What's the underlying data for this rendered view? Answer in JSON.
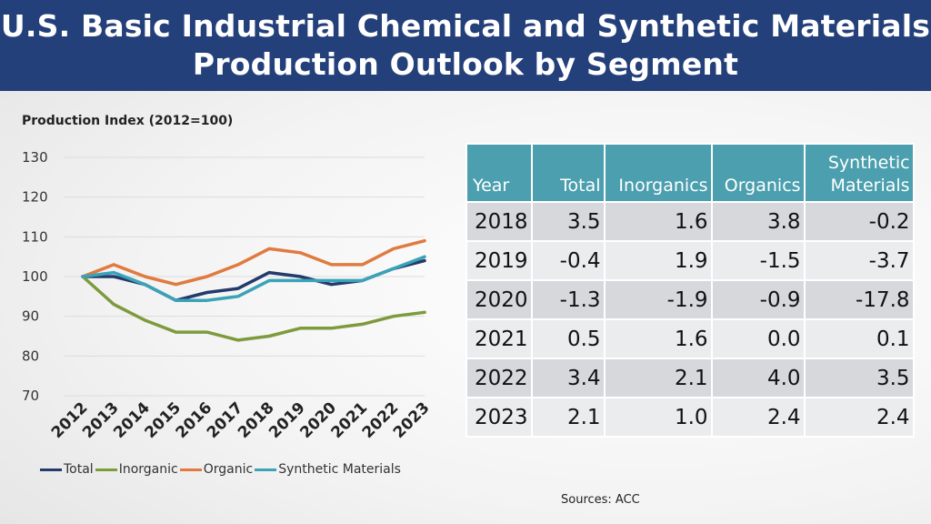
{
  "title_line1": "U.S. Basic Industrial Chemical and Synthetic Materials",
  "title_line2": "Production Outlook by Segment",
  "y_axis_title": "Production Index (2012=100)",
  "source": "Sources: ACC",
  "chart_data": {
    "type": "line",
    "title": "",
    "ylabel": "Production Index (2012=100)",
    "x": [
      "2012",
      "2013",
      "2014",
      "2015",
      "2016",
      "2017",
      "2018",
      "2019",
      "2020",
      "2021",
      "2022",
      "2023"
    ],
    "ylim": [
      70,
      130
    ],
    "yticks": [
      70,
      80,
      90,
      100,
      110,
      120,
      130
    ],
    "grid": true,
    "legend": "bottom",
    "series": [
      {
        "name": "Total",
        "color": "#233a6b",
        "values": [
          100,
          100,
          98,
          94,
          96,
          97,
          101,
          100,
          98,
          99,
          102,
          104
        ]
      },
      {
        "name": "Inorganic",
        "color": "#7d9a3d",
        "values": [
          100,
          93,
          89,
          86,
          86,
          84,
          85,
          87,
          87,
          88,
          90,
          91
        ]
      },
      {
        "name": "Organic",
        "color": "#e07a3f",
        "values": [
          100,
          103,
          100,
          98,
          100,
          103,
          107,
          106,
          103,
          103,
          107,
          109
        ]
      },
      {
        "name": "Synthetic Materials",
        "color": "#3aa3b8",
        "values": [
          100,
          101,
          98,
          94,
          94,
          95,
          99,
          99,
          99,
          99,
          102,
          105
        ]
      }
    ]
  },
  "table": {
    "headers": [
      {
        "line1": "",
        "line2": "Year"
      },
      {
        "line1": "",
        "line2": "Total"
      },
      {
        "line1": "",
        "line2": "Inorganics"
      },
      {
        "line1": "",
        "line2": "Organics"
      },
      {
        "line1": "Synthetic",
        "line2": "Materials"
      }
    ],
    "rows": [
      [
        "2018",
        "3.5",
        "1.6",
        "3.8",
        "-0.2"
      ],
      [
        "2019",
        "-0.4",
        "1.9",
        "-1.5",
        "-3.7"
      ],
      [
        "2020",
        "-1.3",
        "-1.9",
        "-0.9",
        "-17.8"
      ],
      [
        "2021",
        "0.5",
        "1.6",
        "0.0",
        "0.1"
      ],
      [
        "2022",
        "3.4",
        "2.1",
        "4.0",
        "3.5"
      ],
      [
        "2023",
        "2.1",
        "1.0",
        "2.4",
        "2.4"
      ]
    ]
  }
}
